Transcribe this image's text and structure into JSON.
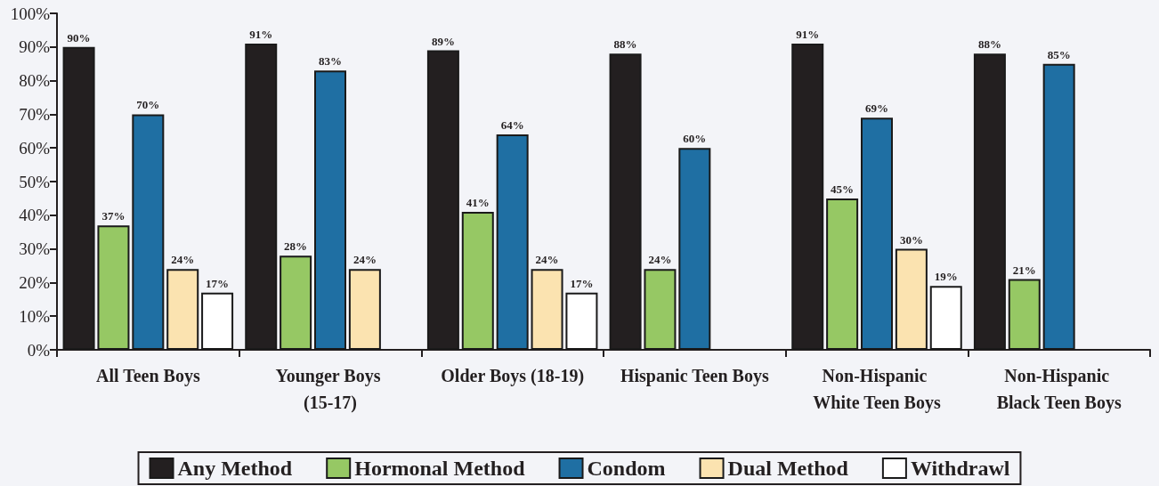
{
  "chart_data": {
    "type": "bar",
    "categories": [
      "All Teen Boys",
      "Younger Boys (15-17)",
      "Older Boys (18-19)",
      "Hispanic Teen Boys",
      "Non-Hispanic White Teen Boys",
      "Non-Hispanic Black Teen Boys"
    ],
    "series": [
      {
        "name": "Any Method",
        "color": "#231f20",
        "values": [
          90,
          91,
          89,
          88,
          91,
          88
        ],
        "value_labels": [
          "90%",
          "91%",
          "89%",
          "88%",
          "91%",
          "88%"
        ]
      },
      {
        "name": "Hormonal Method",
        "color": "#96c864",
        "values": [
          37,
          28,
          41,
          24,
          45,
          21
        ],
        "value_labels": [
          "37%",
          "28%",
          "41%",
          "24%",
          "45%",
          "21%"
        ]
      },
      {
        "name": "Condom",
        "color": "#1f6fa3",
        "values": [
          70,
          83,
          64,
          60,
          69,
          85
        ],
        "value_labels": [
          "70%",
          "83%",
          "64%",
          "60%",
          "69%",
          "85%"
        ]
      },
      {
        "name": "Dual Method",
        "color": "#fbe3b0",
        "values": [
          24,
          24,
          24,
          null,
          30,
          null
        ],
        "value_labels": [
          "24%",
          "24%",
          "24%",
          null,
          "30%",
          null
        ]
      },
      {
        "name": "Withdrawl",
        "color": "#ffffff",
        "values": [
          17,
          null,
          17,
          null,
          19,
          null
        ],
        "value_labels": [
          "17%",
          null,
          "17%",
          null,
          "19%",
          null
        ]
      }
    ],
    "ylim": [
      0,
      100
    ],
    "yticks": [
      {
        "value": 0,
        "label": "0%"
      },
      {
        "value": 10,
        "label": "10%"
      },
      {
        "value": 20,
        "label": "20%"
      },
      {
        "value": 30,
        "label": "30%"
      },
      {
        "value": 40,
        "label": "40%"
      },
      {
        "value": 50,
        "label": "50%"
      },
      {
        "value": 60,
        "label": "60%"
      },
      {
        "value": 70,
        "label": "70%"
      },
      {
        "value": 80,
        "label": "80%"
      },
      {
        "value": 90,
        "label": "90%"
      },
      {
        "value": 100,
        "label": "100%"
      }
    ],
    "grid": false,
    "legend": "bottom"
  }
}
